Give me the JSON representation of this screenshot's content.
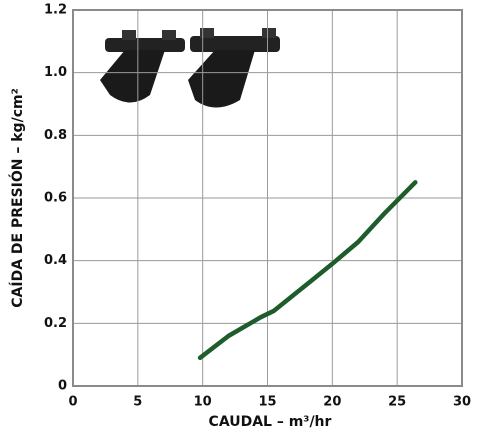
{
  "chart_data": {
    "type": "line",
    "xlabel": "CAUDAL – m³/hr",
    "ylabel": "CAÍDA DE PRESIÓN – kg/cm²",
    "x": [
      9.8,
      12,
      14.5,
      15.5,
      17,
      18.5,
      20,
      22,
      24,
      26.4
    ],
    "values": [
      0.09,
      0.16,
      0.22,
      0.24,
      0.29,
      0.34,
      0.39,
      0.46,
      0.55,
      0.65
    ],
    "color": "#1e5c2b",
    "xlim": [
      0,
      30
    ],
    "xticks": [
      0,
      5,
      10,
      15,
      20,
      25,
      30
    ],
    "ylim": [
      0,
      1.2
    ],
    "yticks": [
      0,
      0.2,
      0.4,
      0.6,
      0.8,
      {
        "value": 1,
        "label": "1.0"
      },
      1.2
    ],
    "grid": true
  }
}
